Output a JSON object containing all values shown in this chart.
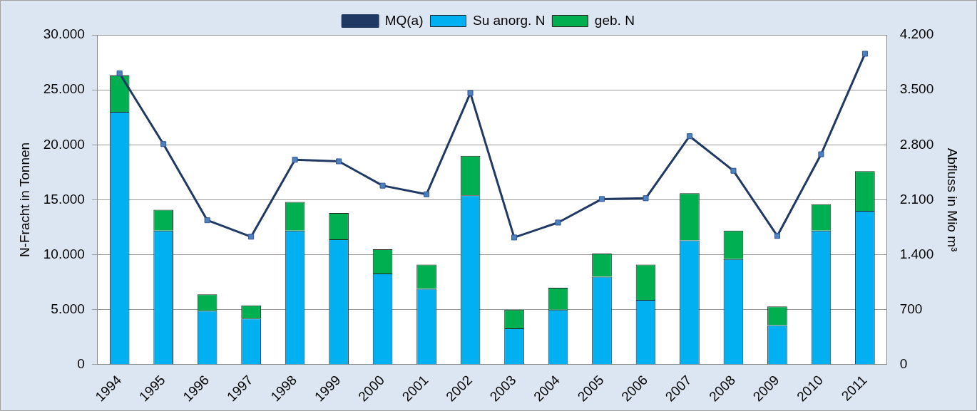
{
  "chart_data": {
    "type": "bar",
    "stacked": true,
    "categories": [
      "1994",
      "1995",
      "1996",
      "1997",
      "1998",
      "1999",
      "2000",
      "2001",
      "2002",
      "2003",
      "2004",
      "2005",
      "2006",
      "2007",
      "2008",
      "2009",
      "2010",
      "2011"
    ],
    "series": [
      {
        "name": "Su anorg. N",
        "color": "#00b0f0",
        "values": [
          23000,
          12200,
          4900,
          4200,
          12200,
          11400,
          8300,
          6900,
          15400,
          3300,
          5000,
          8000,
          5900,
          11300,
          9600,
          3600,
          12200,
          14000
        ]
      },
      {
        "name": "geb. N",
        "color": "#00b050",
        "values": [
          3300,
          1900,
          1500,
          1200,
          2600,
          2400,
          2200,
          2200,
          3600,
          1700,
          2000,
          2100,
          3200,
          4300,
          2600,
          1700,
          2400,
          3600
        ]
      },
      {
        "name": "MQ(a)",
        "type": "line",
        "axis": "y2",
        "color": "#1f3864",
        "marker": "square",
        "values": [
          3710,
          2810,
          1840,
          1630,
          2610,
          2590,
          2280,
          2170,
          3460,
          1620,
          1810,
          2110,
          2120,
          2910,
          2470,
          1640,
          2680,
          3960
        ]
      }
    ],
    "ylabel": "N-Fracht in Tonnen",
    "y2label": "Abfluss in Mio m³",
    "ylim": [
      0,
      30000
    ],
    "yticks": [
      {
        "value": 0,
        "label": "0"
      },
      {
        "value": 5000,
        "label": "5.000"
      },
      {
        "value": 10000,
        "label": "10.000"
      },
      {
        "value": 15000,
        "label": "15.000"
      },
      {
        "value": 20000,
        "label": "20.000"
      },
      {
        "value": 25000,
        "label": "25.000"
      },
      {
        "value": 30000,
        "label": "30.000"
      }
    ],
    "y2lim": [
      0,
      4200
    ],
    "y2ticks": [
      0,
      700,
      {
        "value": 1400,
        "label": "1.400"
      },
      {
        "value": 2100,
        "label": "2.100"
      },
      {
        "value": 2800,
        "label": "2.800"
      },
      {
        "value": 3500,
        "label": "3.500"
      },
      {
        "value": 4200,
        "label": "4.200"
      }
    ],
    "grid": "y",
    "legend": "top"
  }
}
